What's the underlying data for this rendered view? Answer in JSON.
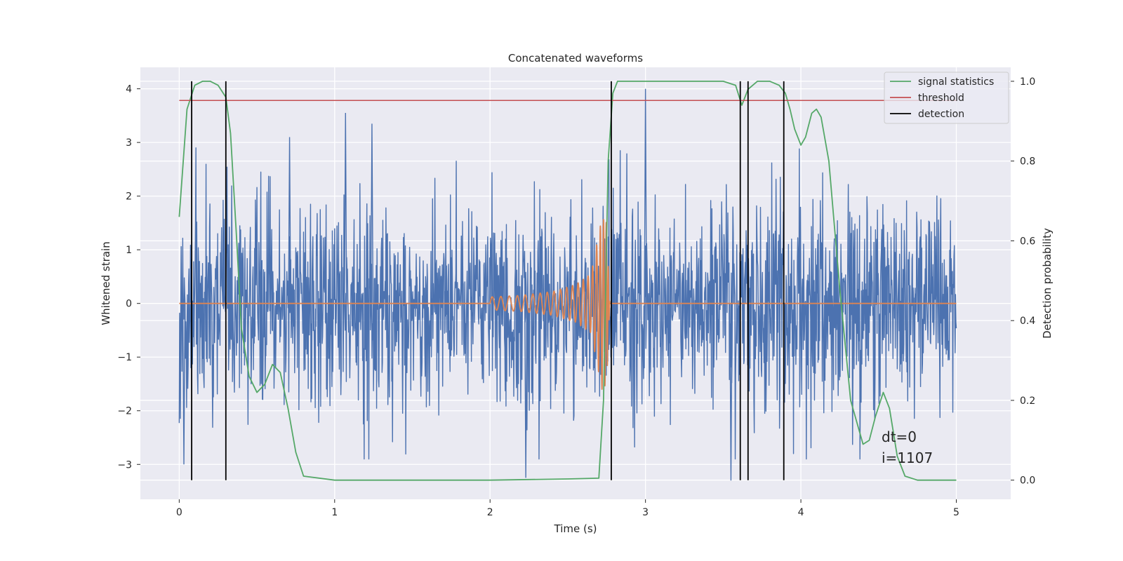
{
  "chart_data": {
    "type": "line",
    "title": "Concatenated waveforms",
    "xlabel": "Time (s)",
    "ylabel": "Whitened strain",
    "ylabel_right": "Detection probability",
    "xlim": [
      -0.25,
      5.35
    ],
    "ylim": [
      -3.65,
      4.4
    ],
    "ylim_right": [
      -0.048,
      1.035
    ],
    "xticks": [
      0,
      1,
      2,
      3,
      4,
      5
    ],
    "xtick_labels": [
      "0",
      "1",
      "2",
      "3",
      "4",
      "5"
    ],
    "yticks": [
      -3,
      -2,
      -1,
      0,
      1,
      2,
      3,
      4
    ],
    "ytick_labels": [
      "−3",
      "−2",
      "−1",
      "0",
      "1",
      "2",
      "3",
      "4"
    ],
    "yticks_right": [
      0.0,
      0.2,
      0.4,
      0.6,
      0.8,
      1.0
    ],
    "ytick_labels_right": [
      "0.0",
      "0.2",
      "0.4",
      "0.6",
      "0.8",
      "1.0"
    ],
    "grid": true,
    "colors": {
      "strain": "#4c72b0",
      "template": "#dd8452",
      "signal_statistics": "#55a868",
      "threshold": "#c44e52",
      "detection": "#000000",
      "background": "#eaeaf2",
      "grid": "#ffffff"
    },
    "series": [
      {
        "name": "strain",
        "axis": "left",
        "description": "whitened noise time series spanning 0–5 s, amplitude mostly within ±2.5",
        "x_range": [
          0,
          5
        ],
        "typical_amplitude": 1.0,
        "peaks": [
          [
            1.07,
            3.55
          ],
          [
            1.24,
            3.35
          ],
          [
            0.71,
            3.1
          ],
          [
            3.0,
            4.0
          ],
          [
            0.03,
            -3.0
          ],
          [
            3.55,
            -3.3
          ],
          [
            2.23,
            -3.25
          ]
        ]
      },
      {
        "name": "template",
        "axis": "left",
        "description": "chirp waveform, zero except between ~2.0 s and 2.77 s",
        "x": [
          0,
          2.0,
          2.2,
          2.4,
          2.55,
          2.65,
          2.72,
          2.75,
          2.77,
          5.0
        ],
        "envelope": [
          0,
          0.12,
          0.15,
          0.22,
          0.35,
          0.55,
          1.6,
          1.5,
          0,
          0
        ]
      },
      {
        "name": "signal statistics",
        "axis": "right",
        "x": [
          0.0,
          0.05,
          0.1,
          0.15,
          0.2,
          0.25,
          0.3,
          0.33,
          0.37,
          0.4,
          0.45,
          0.5,
          0.55,
          0.6,
          0.65,
          0.7,
          0.75,
          0.8,
          1.0,
          2.0,
          2.5,
          2.7,
          2.73,
          2.76,
          2.79,
          2.82,
          2.85,
          2.9,
          3.5,
          3.58,
          3.62,
          3.66,
          3.72,
          3.8,
          3.86,
          3.9,
          3.93,
          3.96,
          4.0,
          4.03,
          4.07,
          4.1,
          4.13,
          4.18,
          4.25,
          4.32,
          4.4,
          4.44,
          4.48,
          4.53,
          4.57,
          4.62,
          4.67,
          4.75,
          5.0
        ],
        "y": [
          0.66,
          0.93,
          0.99,
          1.0,
          1.0,
          0.99,
          0.96,
          0.87,
          0.6,
          0.38,
          0.26,
          0.22,
          0.24,
          0.29,
          0.27,
          0.18,
          0.07,
          0.01,
          0.0,
          0.0,
          0.003,
          0.005,
          0.2,
          0.8,
          0.97,
          1.0,
          1.0,
          1.0,
          1.0,
          0.99,
          0.94,
          0.98,
          1.0,
          1.0,
          0.99,
          0.97,
          0.93,
          0.88,
          0.84,
          0.86,
          0.92,
          0.93,
          0.91,
          0.8,
          0.48,
          0.2,
          0.09,
          0.1,
          0.16,
          0.22,
          0.18,
          0.06,
          0.01,
          0.0,
          0.0
        ]
      },
      {
        "name": "threshold",
        "axis": "right",
        "x": [
          0,
          5
        ],
        "y": [
          0.952,
          0.952
        ]
      },
      {
        "name": "detection",
        "axis": "right",
        "type": "vlines",
        "x": [
          0.08,
          0.3,
          2.78,
          3.61,
          3.66,
          3.89
        ],
        "y_range": [
          0.0,
          1.0
        ]
      }
    ],
    "legend": {
      "position": "top-right",
      "entries": [
        "signal statistics",
        "threshold",
        "detection"
      ]
    },
    "annotations": [
      "dt=0",
      "i=1107"
    ]
  }
}
